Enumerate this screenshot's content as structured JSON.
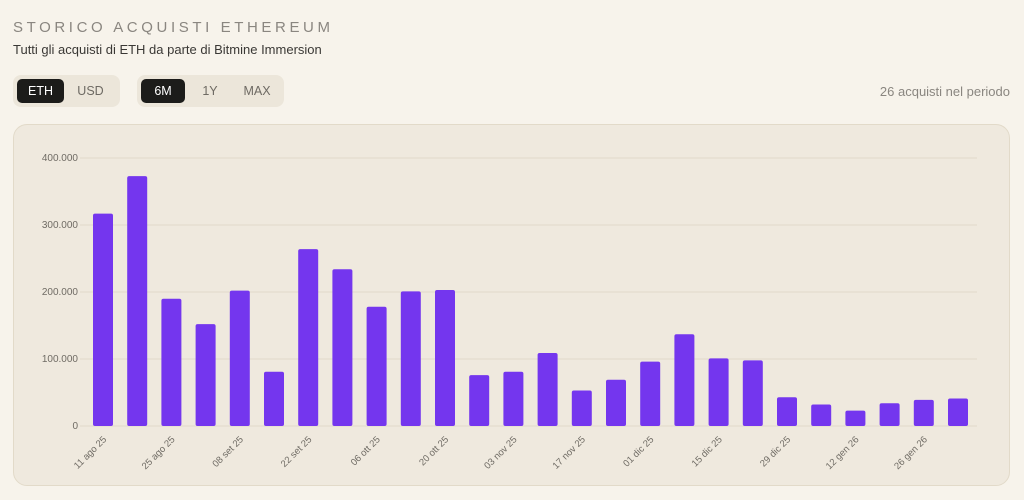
{
  "header": {
    "title": "STORICO ACQUISTI ETHEREUM",
    "subtitle": "Tutti gli acquisti di ETH da parte di Bitmine Immersion"
  },
  "controls": {
    "unit_toggle": [
      "ETH",
      "USD"
    ],
    "unit_selected": "ETH",
    "range_toggle": [
      "6M",
      "1Y",
      "MAX"
    ],
    "range_selected": "6M"
  },
  "purchase_count": "26 acquisti nel periodo",
  "colors": {
    "bar": "#7436ee",
    "background": "#f7f3eb",
    "panel": "#efe9de"
  },
  "chart_data": {
    "type": "bar",
    "title": "",
    "xlabel": "",
    "ylabel": "",
    "ylim": [
      0,
      400000
    ],
    "yticks": [
      0,
      100000,
      200000,
      300000,
      400000
    ],
    "ytick_labels": [
      "0",
      "100.000",
      "200.000",
      "300.000",
      "400.000"
    ],
    "grid": true,
    "legend": "none",
    "xtick_labels": [
      "11 ago 25",
      "25 ago 25",
      "08 set 25",
      "22 set 25",
      "06 ott 25",
      "20 ott 25",
      "03 nov 25",
      "17 nov 25",
      "01 dic 25",
      "15 dic 25",
      "29 dic 25",
      "12 gen 26",
      "26 gen 26"
    ],
    "values": [
      317000,
      373000,
      190000,
      152000,
      202000,
      81000,
      264000,
      234000,
      178000,
      201000,
      203000,
      76000,
      81000,
      109000,
      53000,
      69000,
      96000,
      137000,
      101000,
      98000,
      43000,
      32000,
      23000,
      34000,
      39000,
      41000
    ]
  }
}
